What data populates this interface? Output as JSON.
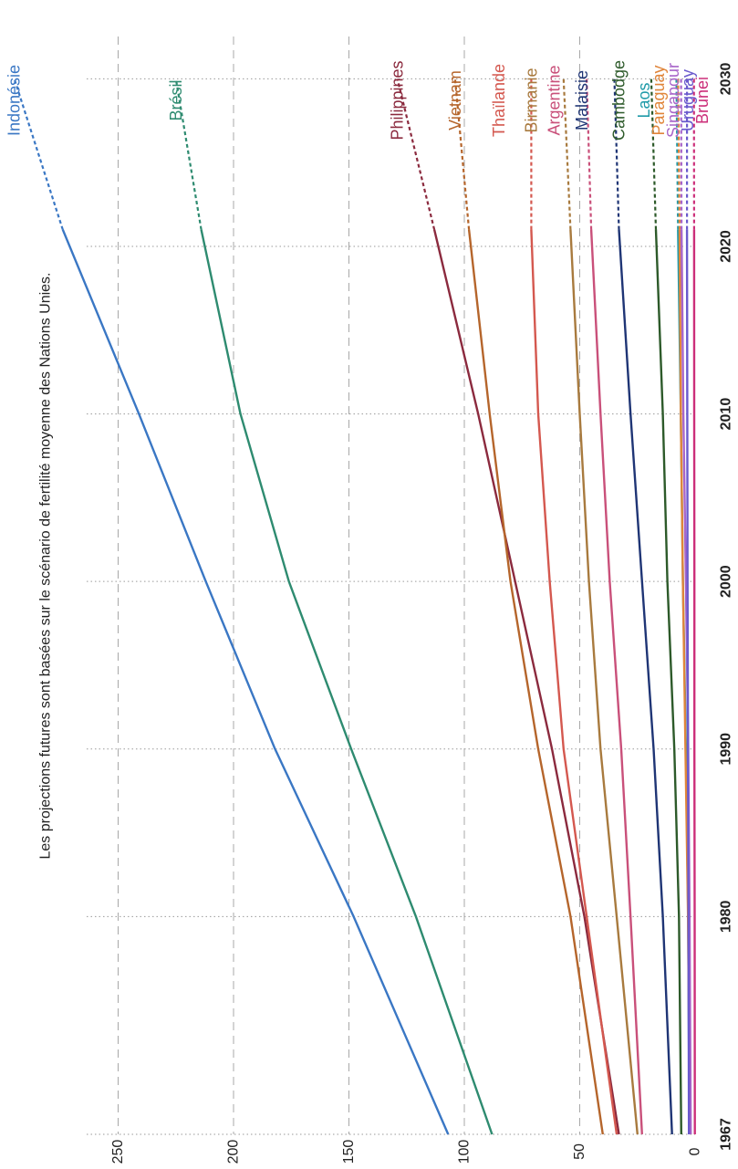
{
  "chart_data": {
    "type": "line",
    "title": "",
    "subtitle": "Les projections futures sont basées sur le scénario de fertilité moyenne des Nations Unies.",
    "xlabel": "",
    "ylabel": "",
    "orientation": "rotated-90-ccw",
    "x_ticks": [
      "1967",
      "1980",
      "1990",
      "2000",
      "2010",
      "2020",
      "2030"
    ],
    "y_ticks": [
      "0",
      "50",
      "100",
      "150",
      "200",
      "250"
    ],
    "xlim": [
      1967,
      2030
    ],
    "ylim": [
      0,
      280
    ],
    "grid": "on",
    "projection_start": 2021,
    "series": [
      {
        "name": "Indonésie",
        "color": "#3a77c4",
        "points": [
          [
            1967,
            107
          ],
          [
            1980,
            148
          ],
          [
            1990,
            182
          ],
          [
            2000,
            212
          ],
          [
            2010,
            241
          ],
          [
            2021,
            274
          ],
          [
            2030,
            295
          ]
        ]
      },
      {
        "name": "Brésil",
        "color": "#2e8b70",
        "points": [
          [
            1967,
            88
          ],
          [
            1980,
            121
          ],
          [
            1990,
            149
          ],
          [
            2000,
            176
          ],
          [
            2010,
            197
          ],
          [
            2021,
            214
          ],
          [
            2030,
            225
          ]
        ]
      },
      {
        "name": "Philippines",
        "color": "#8b2a3e",
        "points": [
          [
            1967,
            33
          ],
          [
            1980,
            48
          ],
          [
            1990,
            62
          ],
          [
            2000,
            78
          ],
          [
            2010,
            94
          ],
          [
            2021,
            113
          ],
          [
            2030,
            129
          ]
        ]
      },
      {
        "name": "Vietnam",
        "color": "#b5652b",
        "points": [
          [
            1967,
            40
          ],
          [
            1980,
            54
          ],
          [
            1990,
            68
          ],
          [
            2000,
            80
          ],
          [
            2010,
            89
          ],
          [
            2021,
            98
          ],
          [
            2030,
            104
          ]
        ]
      },
      {
        "name": "Thaïlande",
        "color": "#d4584f",
        "points": [
          [
            1967,
            34
          ],
          [
            1980,
            47
          ],
          [
            1990,
            57
          ],
          [
            2000,
            63
          ],
          [
            2010,
            68
          ],
          [
            2021,
            71
          ],
          [
            2030,
            71
          ]
        ]
      },
      {
        "name": "Birmanie",
        "color": "#a87a3e",
        "points": [
          [
            1967,
            25
          ],
          [
            1980,
            34
          ],
          [
            1990,
            41
          ],
          [
            2000,
            46
          ],
          [
            2010,
            50
          ],
          [
            2021,
            54
          ],
          [
            2030,
            57
          ]
        ]
      },
      {
        "name": "Argentine",
        "color": "#c9507a",
        "points": [
          [
            1967,
            23
          ],
          [
            1980,
            28
          ],
          [
            1990,
            32
          ],
          [
            2000,
            37
          ],
          [
            2010,
            41
          ],
          [
            2021,
            45
          ],
          [
            2030,
            47
          ]
        ]
      },
      {
        "name": "Malaisie",
        "color": "#1f3575",
        "points": [
          [
            1967,
            10
          ],
          [
            1980,
            14
          ],
          [
            1990,
            18
          ],
          [
            2000,
            23
          ],
          [
            2010,
            28
          ],
          [
            2021,
            33
          ],
          [
            2030,
            35
          ]
        ]
      },
      {
        "name": "Cambodge",
        "color": "#2d5a2a",
        "points": [
          [
            1967,
            6
          ],
          [
            1980,
            7
          ],
          [
            1990,
            9
          ],
          [
            2000,
            12
          ],
          [
            2010,
            14
          ],
          [
            2021,
            17
          ],
          [
            2030,
            19
          ]
        ]
      },
      {
        "name": "Laos",
        "color": "#1f9aa8",
        "points": [
          [
            1967,
            2.5
          ],
          [
            1980,
            3
          ],
          [
            1990,
            4
          ],
          [
            2000,
            5.3
          ],
          [
            2010,
            6.2
          ],
          [
            2021,
            7.4
          ],
          [
            2030,
            8.1
          ]
        ]
      },
      {
        "name": "Paraguay",
        "color": "#e0853a",
        "points": [
          [
            1967,
            2.3
          ],
          [
            1980,
            3.1
          ],
          [
            1990,
            4.2
          ],
          [
            2000,
            5.3
          ],
          [
            2010,
            6.2
          ],
          [
            2021,
            6.7
          ],
          [
            2030,
            7.4
          ]
        ]
      },
      {
        "name": "Singapour",
        "color": "#a865c9",
        "points": [
          [
            1967,
            1.9
          ],
          [
            1980,
            2.4
          ],
          [
            1990,
            3.0
          ],
          [
            2000,
            4.0
          ],
          [
            2010,
            5.1
          ],
          [
            2021,
            5.9
          ],
          [
            2030,
            6.1
          ]
        ]
      },
      {
        "name": "Uruguay",
        "color": "#6a5acd",
        "points": [
          [
            1967,
            2.7
          ],
          [
            1980,
            2.9
          ],
          [
            1990,
            3.1
          ],
          [
            2000,
            3.3
          ],
          [
            2010,
            3.4
          ],
          [
            2021,
            3.5
          ],
          [
            2030,
            3.5
          ]
        ]
      },
      {
        "name": "Brunei",
        "color": "#cc2f7a",
        "points": [
          [
            1967,
            0.1
          ],
          [
            1980,
            0.2
          ],
          [
            1990,
            0.3
          ],
          [
            2000,
            0.3
          ],
          [
            2010,
            0.4
          ],
          [
            2021,
            0.45
          ],
          [
            2030,
            0.5
          ]
        ]
      }
    ]
  }
}
